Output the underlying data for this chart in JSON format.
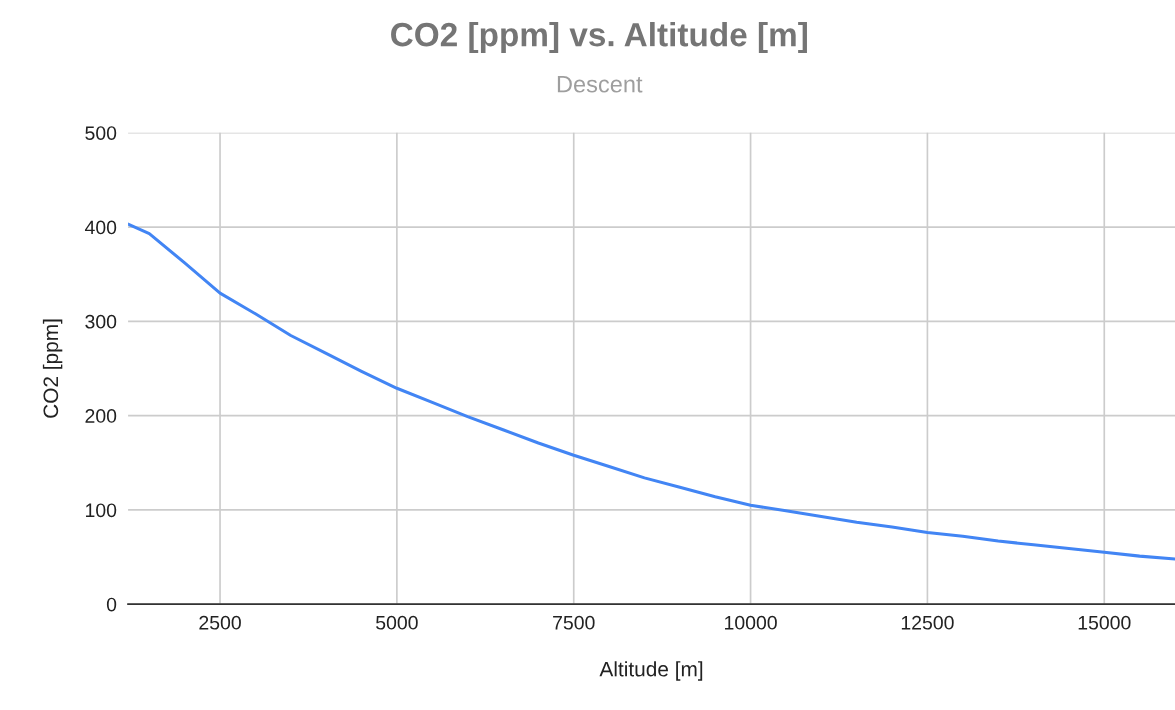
{
  "chart_data": {
    "type": "line",
    "title": "CO2 [ppm] vs. Altitude [m]",
    "subtitle": "Descent",
    "xlabel": "Altitude [m]",
    "ylabel": "CO2 [ppm]",
    "x": [
      1200,
      1500,
      2000,
      2500,
      3000,
      3500,
      4000,
      4500,
      5000,
      5500,
      6000,
      6500,
      7000,
      7500,
      8000,
      8500,
      9000,
      9500,
      10000,
      10500,
      11000,
      11500,
      12000,
      12500,
      13000,
      13500,
      14000,
      14500,
      15000,
      15500,
      16000
    ],
    "series": [
      {
        "color": "#4285f4",
        "values": [
          403,
          393,
          362,
          330,
          308,
          285,
          266,
          247,
          229,
          214,
          199,
          185,
          171,
          158,
          146,
          134,
          124,
          114,
          105,
          99,
          93,
          87,
          82,
          76,
          72,
          67,
          63,
          59,
          55,
          51,
          48
        ]
      }
    ],
    "xlim": [
      1200,
      16000
    ],
    "xticks": [
      2500,
      5000,
      7500,
      10000,
      12500,
      15000
    ],
    "ylim": [
      0,
      500
    ],
    "yticks": [
      0,
      100,
      200,
      300,
      400,
      500
    ],
    "grid": true,
    "legend": false,
    "marker": "none",
    "line_style": "solid"
  }
}
